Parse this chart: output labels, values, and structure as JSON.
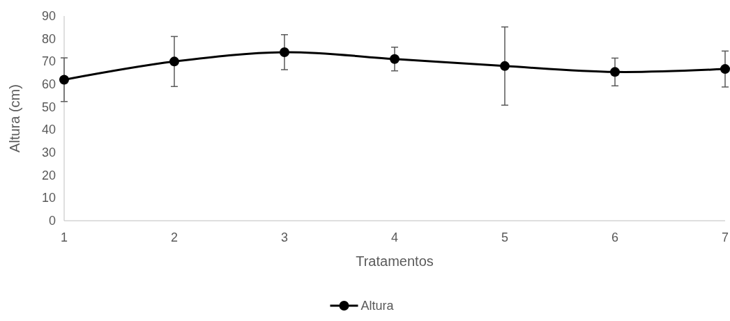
{
  "chart_data": {
    "type": "line",
    "xlabel": "Tratamentos",
    "ylabel": "Altura (cm)",
    "x": [
      1,
      2,
      3,
      4,
      5,
      6,
      7
    ],
    "xlim": [
      1,
      7
    ],
    "xticks": [
      1,
      2,
      3,
      4,
      5,
      6,
      7
    ],
    "ylim": [
      0,
      90
    ],
    "yticks": [
      0,
      10,
      20,
      30,
      40,
      50,
      60,
      70,
      80,
      90
    ],
    "series": [
      {
        "name": "Altura",
        "color": "#000000",
        "values": [
          62.0,
          70.0,
          74.1,
          71.1,
          68.0,
          65.4,
          66.7
        ],
        "errors": [
          9.6,
          11,
          7.7,
          5.2,
          17.2,
          6.1,
          7.9
        ]
      }
    ],
    "marker": "circle",
    "line_style": "solid",
    "legend": "bottom",
    "grid": false
  }
}
